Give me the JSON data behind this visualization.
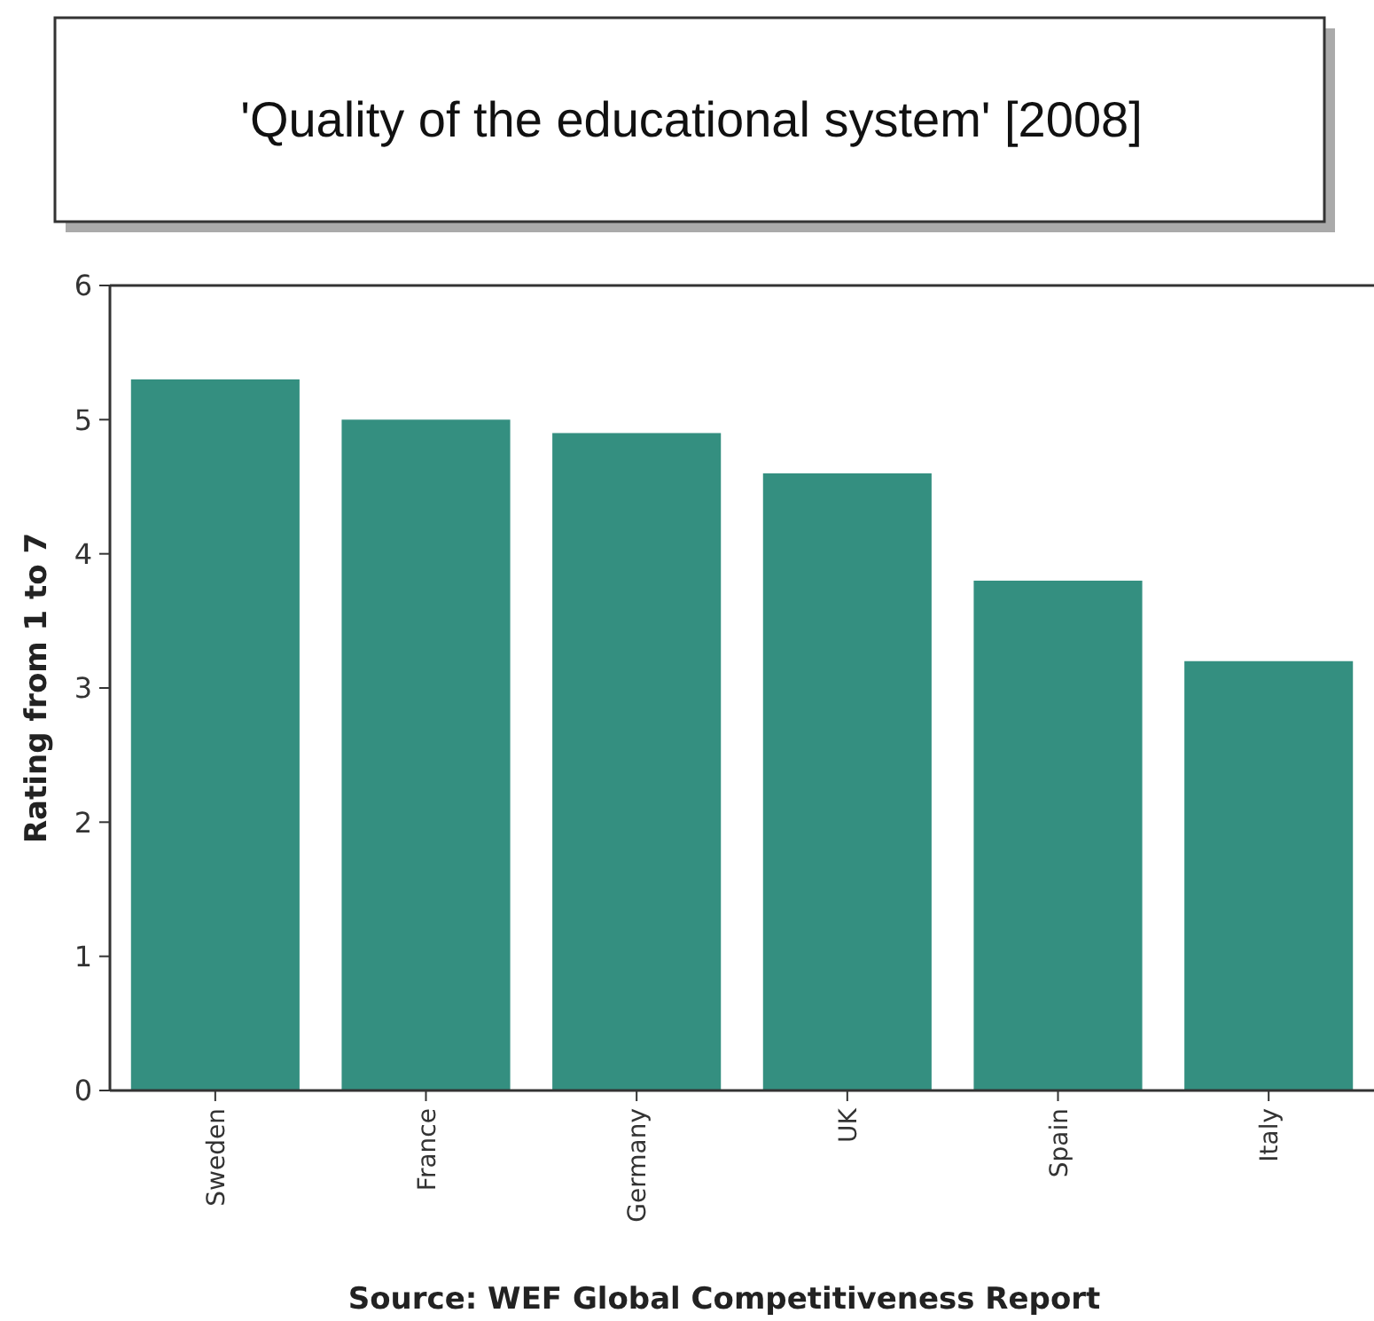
{
  "chart_data": {
    "type": "bar",
    "title": "'Quality of the educational system' [2008]",
    "ylabel": "Rating from 1 to 7",
    "annotations": [
      "Source: WEF Global Competitiveness Report"
    ],
    "categories": [
      "Sweden",
      "France",
      "Germany",
      "UK",
      "Spain",
      "Italy"
    ],
    "values": [
      5.3,
      5.0,
      4.9,
      4.6,
      3.8,
      3.2
    ],
    "color": "#348f80",
    "ylim": [
      0,
      6
    ],
    "yticks": [
      0,
      1,
      2,
      3,
      4,
      5,
      6
    ],
    "grid": false
  }
}
